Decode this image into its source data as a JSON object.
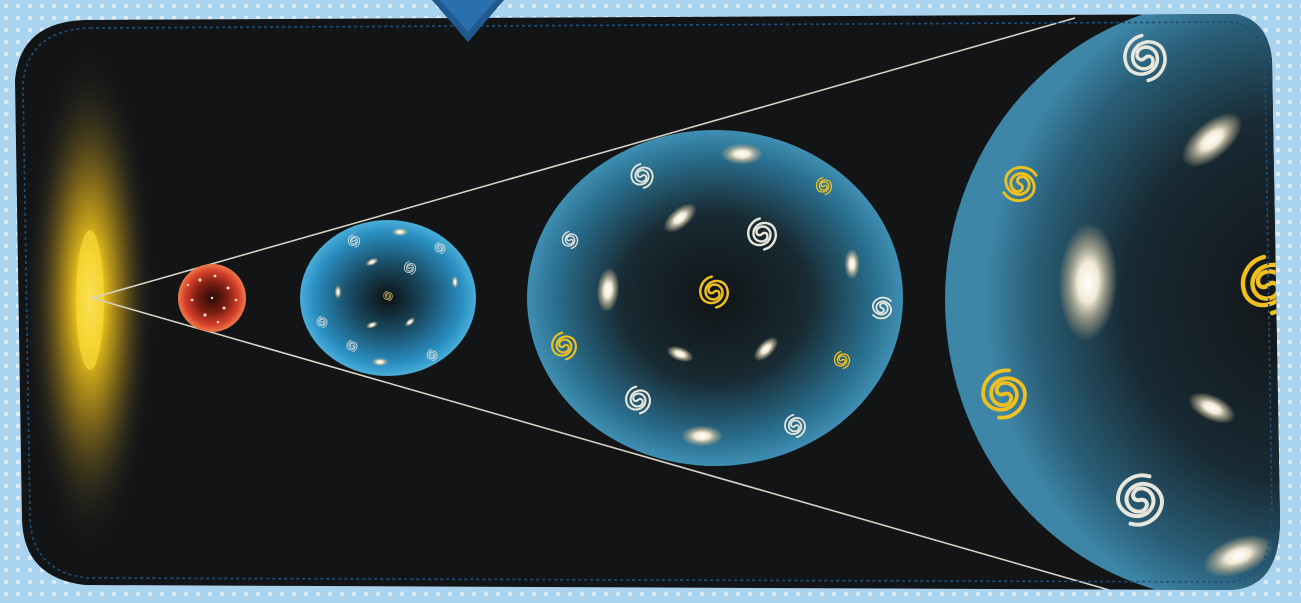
{
  "colors": {
    "background_pattern": "#a9d3ee",
    "panel": "#121416",
    "panel_border": "#1f4e79",
    "arrow": "#1f5a8f",
    "cone_lines": "#d8d2c4",
    "big_bang_core": "#f2c21a",
    "early_universe": "#d6402a",
    "bubble_blue": "#2a8fc2",
    "galaxy_white": "#e9e6dc",
    "galaxy_gold": "#f0c020"
  },
  "icons": [
    "down-arrow-icon",
    "big-bang-glow",
    "spiral-galaxy-icon",
    "elliptical-galaxy-icon"
  ],
  "stages": [
    {
      "name": "big-bang"
    },
    {
      "name": "early-hot-universe"
    },
    {
      "name": "small-universe"
    },
    {
      "name": "medium-universe"
    },
    {
      "name": "large-universe"
    }
  ]
}
